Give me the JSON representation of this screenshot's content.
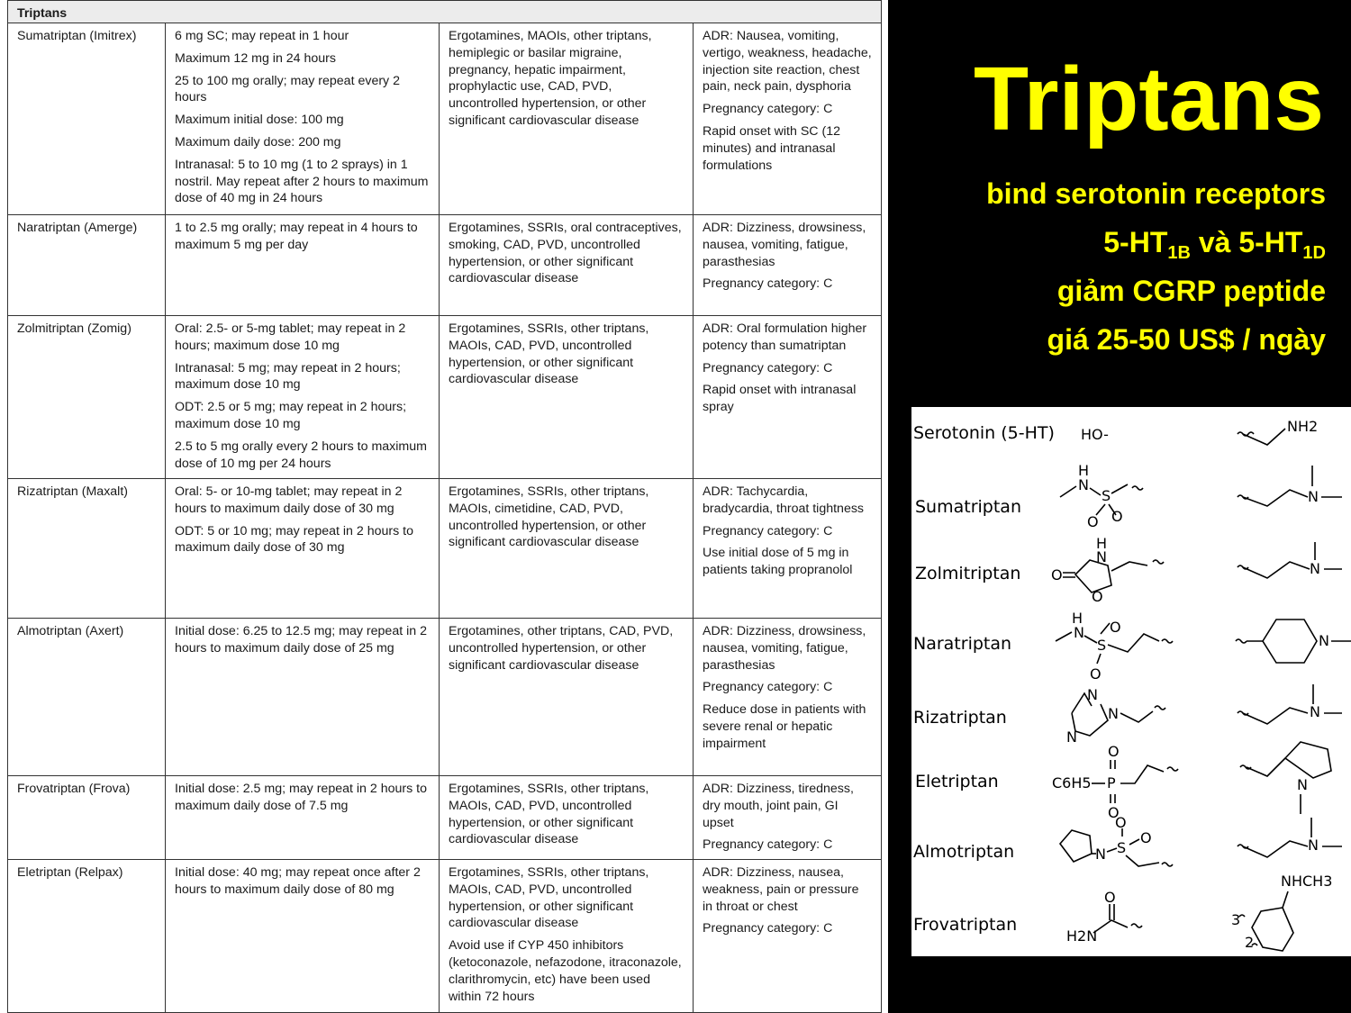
{
  "table": {
    "header": "Triptans",
    "rows": [
      {
        "drug": "Sumatriptan (Imitrex)",
        "dosing": [
          "6 mg SC; may repeat in 1 hour",
          "Maximum 12 mg in 24 hours",
          "25 to 100 mg orally; may repeat every 2 hours",
          "Maximum initial dose: 100 mg",
          "Maximum daily dose: 200 mg",
          "Intranasal: 5 to 10 mg (1 to 2 sprays) in 1 nostril. May repeat after 2 hours to maximum dose of 40 mg in 24 hours"
        ],
        "contraindications": [
          "Ergotamines, MAOIs, other triptans, hemiplegic or basilar migraine, pregnancy, hepatic impairment, prophylactic use, CAD, PVD, uncontrolled hypertension, or other significant cardiovascular disease"
        ],
        "notes": [
          "ADR: Nausea, vomiting, vertigo, weakness, headache, injection site reaction, chest pain, neck pain, dysphoria",
          "Pregnancy category: C",
          "Rapid onset with SC (12 minutes) and intranasal formulations"
        ]
      },
      {
        "drug": "Naratriptan (Amerge)",
        "dosing": [
          "1 to 2.5 mg orally; may repeat in 4 hours to maximum 5 mg per day"
        ],
        "contraindications": [
          "Ergotamines, SSRIs, oral contraceptives, smoking, CAD, PVD, uncontrolled hypertension, or other significant cardiovascular disease"
        ],
        "notes": [
          "ADR: Dizziness, drowsiness, nausea, vomiting, fatigue, parasthesias",
          "Pregnancy category: C"
        ]
      },
      {
        "drug": "Zolmitriptan (Zomig)",
        "dosing": [
          "Oral: 2.5- or 5-mg tablet; may repeat in 2 hours; maximum dose 10 mg",
          "Intranasal: 5 mg; may repeat in 2 hours; maximum dose 10 mg",
          "ODT: 2.5 or 5 mg; may repeat in 2 hours; maximum dose 10 mg",
          "2.5 to 5 mg orally every 2 hours to maximum dose of 10 mg per 24 hours"
        ],
        "contraindications": [
          "Ergotamines, SSRIs, other triptans, MAOIs, CAD, PVD, uncontrolled hypertension, or other significant cardiovascular disease"
        ],
        "notes": [
          "ADR: Oral formulation higher potency than sumatriptan",
          "Pregnancy category: C",
          "Rapid onset with intranasal spray"
        ]
      },
      {
        "drug": "Rizatriptan (Maxalt)",
        "dosing": [
          "Oral: 5- or 10-mg tablet; may repeat in 2 hours to maximum daily dose of 30 mg",
          "ODT: 5 or 10 mg; may repeat in 2 hours to maximum daily dose of 30 mg"
        ],
        "contraindications": [
          "Ergotamines, SSRIs, other triptans, MAOIs, cimetidine, CAD, PVD, uncontrolled hypertension, or other significant cardiovascular disease"
        ],
        "notes": [
          "ADR: Tachycardia, bradycardia, throat tightness",
          "Pregnancy category: C",
          "Use initial dose of 5 mg in patients taking propranolol"
        ]
      },
      {
        "drug": "Almotriptan (Axert)",
        "dosing": [
          "Initial dose: 6.25 to 12.5 mg; may repeat in 2 hours to maximum daily dose of 25 mg"
        ],
        "contraindications": [
          "Ergotamines, other triptans, CAD, PVD, uncontrolled hypertension, or other significant cardiovascular disease"
        ],
        "notes": [
          "ADR: Dizziness, drowsiness, nausea, vomiting, fatigue, parasthesias",
          "Pregnancy category: C",
          "Reduce dose in patients with severe renal or hepatic impairment"
        ]
      },
      {
        "drug": "Frovatriptan (Frova)",
        "dosing": [
          "Initial dose: 2.5 mg; may repeat in 2 hours to maximum daily dose of 7.5 mg"
        ],
        "contraindications": [
          "Ergotamines, SSRIs, other triptans, MAOIs, CAD, PVD, uncontrolled hypertension, or other significant cardiovascular disease"
        ],
        "notes": [
          "ADR: Dizziness, tiredness, dry mouth, joint pain, GI upset",
          "Pregnancy category: C"
        ]
      },
      {
        "drug": "Eletriptan (Relpax)",
        "dosing": [
          "Initial dose: 40 mg; may repeat once after 2 hours to maximum daily dose of 80 mg"
        ],
        "contraindications": [
          "Ergotamines, SSRIs, other triptans, MAOIs, CAD, PVD, uncontrolled hypertension, or other significant cardiovascular disease",
          "Avoid use if CYP 450 inhibitors (ketoconazole, nefazodone, itraconazole, clarithromycin, etc) have been used within 72 hours"
        ],
        "notes": [
          "ADR: Dizziness, nausea, weakness, pain or pressure in throat or chest",
          "Pregnancy category: C"
        ]
      }
    ]
  },
  "slide": {
    "title": "Triptans",
    "line1": "bind serotonin receptors",
    "line2_a": "5-HT",
    "line2_sub1": "1B",
    "line2_b": " và 5-HT",
    "line2_sub2": "1D",
    "line3": "giảm CGRP peptide",
    "line4": "giá 25-50 US$ / ngày"
  },
  "structures": {
    "names": [
      "Serotonin (5-HT)",
      "Sumatriptan",
      "Zolmitriptan",
      "Naratriptan",
      "Rizatriptan",
      "Eletriptan",
      "Almotriptan",
      "Frovatriptan"
    ],
    "serotonin_group": "HO-",
    "atom_labels": {
      "nh2": "NH2",
      "n": "N",
      "h": "H",
      "s": "S",
      "o": "O",
      "p": "P",
      "c6h5": "C6H5",
      "h2n": "H2N",
      "nhch3": "NHCH3",
      "pos3": "3",
      "pos2": "2"
    }
  }
}
